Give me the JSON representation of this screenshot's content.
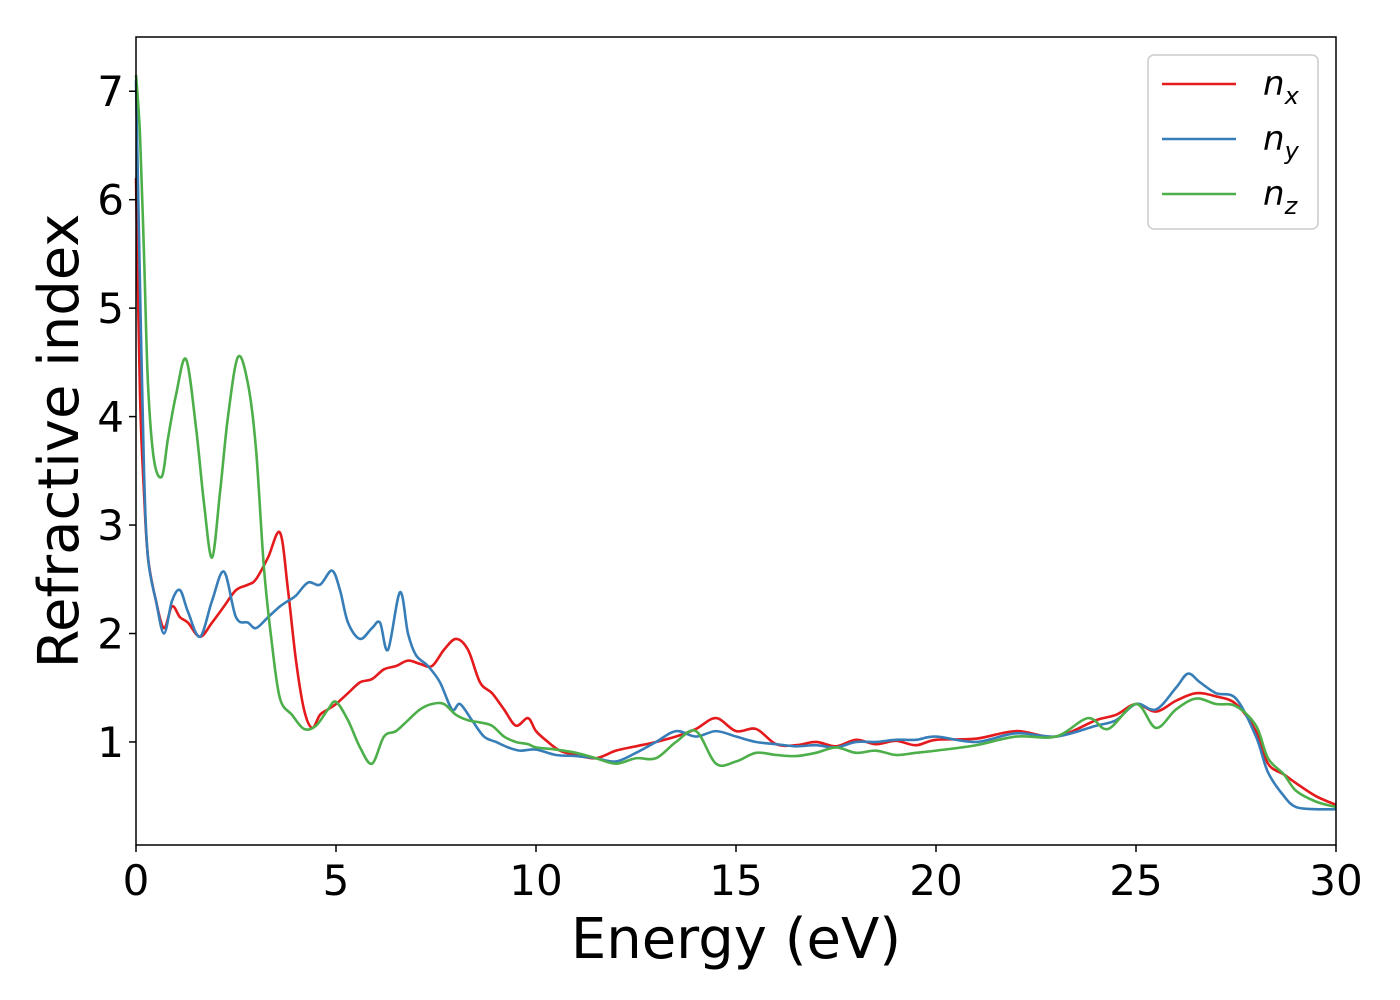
{
  "chart_data": {
    "type": "line",
    "xlabel": "Energy (eV)",
    "ylabel": "Refractive index",
    "xlim": [
      0,
      30
    ],
    "ylim": [
      0.05,
      7.5
    ],
    "xticks": [
      0,
      5,
      10,
      15,
      20,
      25,
      30
    ],
    "yticks": [
      1,
      2,
      3,
      4,
      5,
      6,
      7
    ],
    "grid": false,
    "legend_position": "top-right",
    "series": [
      {
        "name": "n",
        "subscript": "x",
        "color": "#e41a1c",
        "x": [
          0,
          0.1,
          0.2,
          0.3,
          0.5,
          0.7,
          0.9,
          1.1,
          1.3,
          1.6,
          1.9,
          2.2,
          2.5,
          2.8,
          3.0,
          3.3,
          3.6,
          3.8,
          4.0,
          4.2,
          4.4,
          4.6,
          4.8,
          5.0,
          5.3,
          5.6,
          5.9,
          6.2,
          6.5,
          6.8,
          7.1,
          7.4,
          7.7,
          8.0,
          8.3,
          8.6,
          8.9,
          9.2,
          9.5,
          9.8,
          10.0,
          10.3,
          10.6,
          11.0,
          11.5,
          12.0,
          12.5,
          13.0,
          13.5,
          14.0,
          14.5,
          15.0,
          15.5,
          16.0,
          16.5,
          17.0,
          17.5,
          18.0,
          18.5,
          19.0,
          19.5,
          20.0,
          21.0,
          22.0,
          23.0,
          24.0,
          24.5,
          25.0,
          25.5,
          26.0,
          26.5,
          27.0,
          27.5,
          28.0,
          28.3,
          28.7,
          29.0,
          29.5,
          30.0
        ],
        "values": [
          6.2,
          4.2,
          3.3,
          2.7,
          2.3,
          2.05,
          2.25,
          2.15,
          2.1,
          1.97,
          2.1,
          2.25,
          2.4,
          2.45,
          2.5,
          2.7,
          2.93,
          2.4,
          1.75,
          1.3,
          1.13,
          1.25,
          1.3,
          1.35,
          1.45,
          1.55,
          1.58,
          1.67,
          1.7,
          1.75,
          1.72,
          1.7,
          1.85,
          1.95,
          1.85,
          1.55,
          1.45,
          1.3,
          1.15,
          1.22,
          1.1,
          1.0,
          0.92,
          0.88,
          0.85,
          0.92,
          0.96,
          1.0,
          1.05,
          1.12,
          1.22,
          1.1,
          1.12,
          0.98,
          0.97,
          1.0,
          0.96,
          1.02,
          0.98,
          1.01,
          0.97,
          1.02,
          1.03,
          1.1,
          1.05,
          1.2,
          1.25,
          1.35,
          1.28,
          1.38,
          1.45,
          1.42,
          1.35,
          1.1,
          0.8,
          0.7,
          0.62,
          0.5,
          0.42
        ]
      },
      {
        "name": "n",
        "subscript": "y",
        "color": "#377eb8",
        "x": [
          0,
          0.1,
          0.2,
          0.3,
          0.5,
          0.7,
          0.9,
          1.1,
          1.3,
          1.6,
          1.9,
          2.2,
          2.5,
          2.8,
          3.0,
          3.3,
          3.6,
          3.8,
          4.0,
          4.3,
          4.6,
          4.9,
          5.1,
          5.3,
          5.6,
          5.9,
          6.1,
          6.3,
          6.6,
          6.8,
          7.0,
          7.3,
          7.6,
          7.9,
          8.1,
          8.4,
          8.7,
          9.0,
          9.3,
          9.6,
          10.0,
          10.5,
          11.0,
          11.5,
          12.0,
          12.5,
          13.0,
          13.5,
          14.0,
          14.5,
          15.0,
          15.5,
          16.0,
          16.5,
          17.0,
          17.5,
          18.0,
          18.5,
          19.0,
          19.5,
          20.0,
          21.0,
          22.0,
          23.0,
          24.0,
          24.5,
          25.0,
          25.5,
          26.0,
          26.3,
          26.6,
          27.0,
          27.5,
          28.0,
          28.3,
          28.7,
          29.0,
          29.5,
          30.0
        ],
        "values": [
          7.1,
          5.2,
          3.5,
          2.7,
          2.3,
          2.0,
          2.3,
          2.4,
          2.2,
          1.97,
          2.3,
          2.57,
          2.15,
          2.1,
          2.05,
          2.15,
          2.25,
          2.3,
          2.35,
          2.47,
          2.45,
          2.58,
          2.4,
          2.1,
          1.95,
          2.05,
          2.1,
          1.85,
          2.38,
          2.0,
          1.8,
          1.7,
          1.55,
          1.3,
          1.35,
          1.2,
          1.05,
          1.0,
          0.95,
          0.92,
          0.93,
          0.88,
          0.87,
          0.85,
          0.82,
          0.9,
          1.0,
          1.1,
          1.05,
          1.1,
          1.05,
          1.0,
          0.98,
          0.96,
          0.97,
          0.95,
          1.0,
          1.0,
          1.02,
          1.02,
          1.05,
          1.0,
          1.08,
          1.05,
          1.15,
          1.2,
          1.35,
          1.3,
          1.5,
          1.63,
          1.55,
          1.45,
          1.4,
          1.05,
          0.72,
          0.5,
          0.4,
          0.38,
          0.38
        ]
      },
      {
        "name": "n",
        "subscript": "z",
        "color": "#4daf4a",
        "x": [
          0,
          0.1,
          0.2,
          0.3,
          0.45,
          0.65,
          0.8,
          1.0,
          1.25,
          1.5,
          1.7,
          1.9,
          2.1,
          2.3,
          2.55,
          2.8,
          3.0,
          3.2,
          3.4,
          3.6,
          3.9,
          4.2,
          4.5,
          4.8,
          5.0,
          5.3,
          5.6,
          5.9,
          6.2,
          6.5,
          6.8,
          7.1,
          7.4,
          7.7,
          8.0,
          8.3,
          8.6,
          8.9,
          9.2,
          9.5,
          9.8,
          10.0,
          10.5,
          11.0,
          11.5,
          12.0,
          12.5,
          13.0,
          13.5,
          14.0,
          14.5,
          15.0,
          15.5,
          16.0,
          16.5,
          17.0,
          17.5,
          18.0,
          18.5,
          19.0,
          19.5,
          20.0,
          21.0,
          22.0,
          23.0,
          23.8,
          24.3,
          25.0,
          25.5,
          26.0,
          26.5,
          27.0,
          27.5,
          28.0,
          28.3,
          28.7,
          29.0,
          29.5,
          30.0
        ],
        "values": [
          7.15,
          6.6,
          5.5,
          4.3,
          3.6,
          3.45,
          3.8,
          4.2,
          4.53,
          3.9,
          3.2,
          2.7,
          3.3,
          4.0,
          4.55,
          4.3,
          3.7,
          2.6,
          1.9,
          1.4,
          1.25,
          1.12,
          1.15,
          1.3,
          1.37,
          1.2,
          0.95,
          0.8,
          1.05,
          1.1,
          1.2,
          1.3,
          1.35,
          1.35,
          1.25,
          1.2,
          1.18,
          1.15,
          1.05,
          1.0,
          0.98,
          0.95,
          0.93,
          0.9,
          0.85,
          0.8,
          0.85,
          0.85,
          1.0,
          1.1,
          0.8,
          0.82,
          0.9,
          0.88,
          0.87,
          0.9,
          0.95,
          0.9,
          0.92,
          0.88,
          0.9,
          0.92,
          0.97,
          1.05,
          1.05,
          1.22,
          1.12,
          1.35,
          1.13,
          1.3,
          1.4,
          1.35,
          1.33,
          1.15,
          0.85,
          0.7,
          0.55,
          0.45,
          0.4
        ]
      }
    ]
  }
}
